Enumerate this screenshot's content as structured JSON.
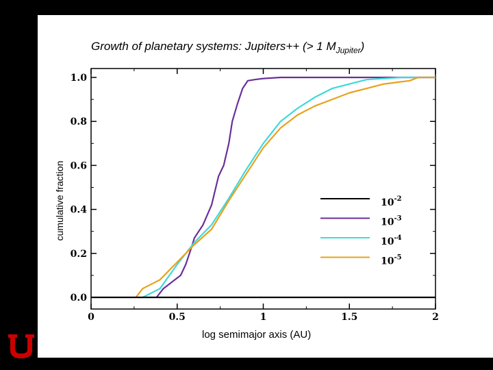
{
  "title": {
    "main": "Growth of planetary systems:  Jupiters++ (> 1 M",
    "sub": "Jupiter",
    "close": ")"
  },
  "colors": {
    "black": "#000000",
    "purple": "#6a2f9a",
    "cyan": "#3fd9d9",
    "orange": "#e8a11a",
    "logo_red": "#cc0000"
  },
  "chart_data": {
    "type": "line",
    "title": "Growth of planetary systems:  Jupiters++ (> 1 MJupiter)",
    "xlabel": "log semimajor axis (AU)",
    "ylabel": "cumulative fraction",
    "xlim": [
      0,
      2
    ],
    "ylim": [
      0,
      1
    ],
    "xticks": [
      "0",
      "0.5",
      "1",
      "1.5",
      "2"
    ],
    "yticks": [
      "0.0",
      "0.2",
      "0.4",
      "0.6",
      "0.8",
      "1.0"
    ],
    "legend_position": "lower-right",
    "series": [
      {
        "name": "10-2",
        "label_base": "10",
        "label_exp": "-2",
        "color": "#000000",
        "x": [
          0,
          2
        ],
        "y": [
          0,
          0
        ]
      },
      {
        "name": "10-3",
        "label_base": "10",
        "label_exp": "-3",
        "color": "#6a2f9a",
        "x": [
          0.38,
          0.42,
          0.47,
          0.52,
          0.55,
          0.58,
          0.6,
          0.65,
          0.7,
          0.74,
          0.77,
          0.8,
          0.82,
          0.85,
          0.88,
          0.91,
          0.95,
          1.0,
          1.1,
          2.0
        ],
        "y": [
          0.0,
          0.04,
          0.07,
          0.1,
          0.15,
          0.22,
          0.27,
          0.33,
          0.42,
          0.55,
          0.6,
          0.7,
          0.8,
          0.88,
          0.95,
          0.985,
          0.99,
          0.995,
          1.0,
          1.0
        ]
      },
      {
        "name": "10-4",
        "label_base": "10",
        "label_exp": "-4",
        "color": "#3fd9d9",
        "x": [
          0.3,
          0.4,
          0.5,
          0.6,
          0.7,
          0.8,
          0.9,
          1.0,
          1.1,
          1.2,
          1.3,
          1.4,
          1.5,
          1.6,
          1.8,
          2.0
        ],
        "y": [
          0.0,
          0.04,
          0.15,
          0.25,
          0.33,
          0.45,
          0.58,
          0.7,
          0.8,
          0.86,
          0.91,
          0.95,
          0.97,
          0.99,
          1.0,
          1.0
        ]
      },
      {
        "name": "10-5",
        "label_base": "10",
        "label_exp": "-5",
        "color": "#e8a11a",
        "x": [
          0.26,
          0.3,
          0.4,
          0.5,
          0.6,
          0.7,
          0.8,
          0.9,
          1.0,
          1.1,
          1.2,
          1.3,
          1.4,
          1.5,
          1.6,
          1.7,
          1.8,
          1.85,
          1.9,
          2.0
        ],
        "y": [
          0.0,
          0.04,
          0.08,
          0.16,
          0.24,
          0.31,
          0.44,
          0.56,
          0.68,
          0.77,
          0.83,
          0.87,
          0.9,
          0.93,
          0.95,
          0.97,
          0.98,
          0.985,
          1.0,
          1.0
        ]
      }
    ]
  }
}
